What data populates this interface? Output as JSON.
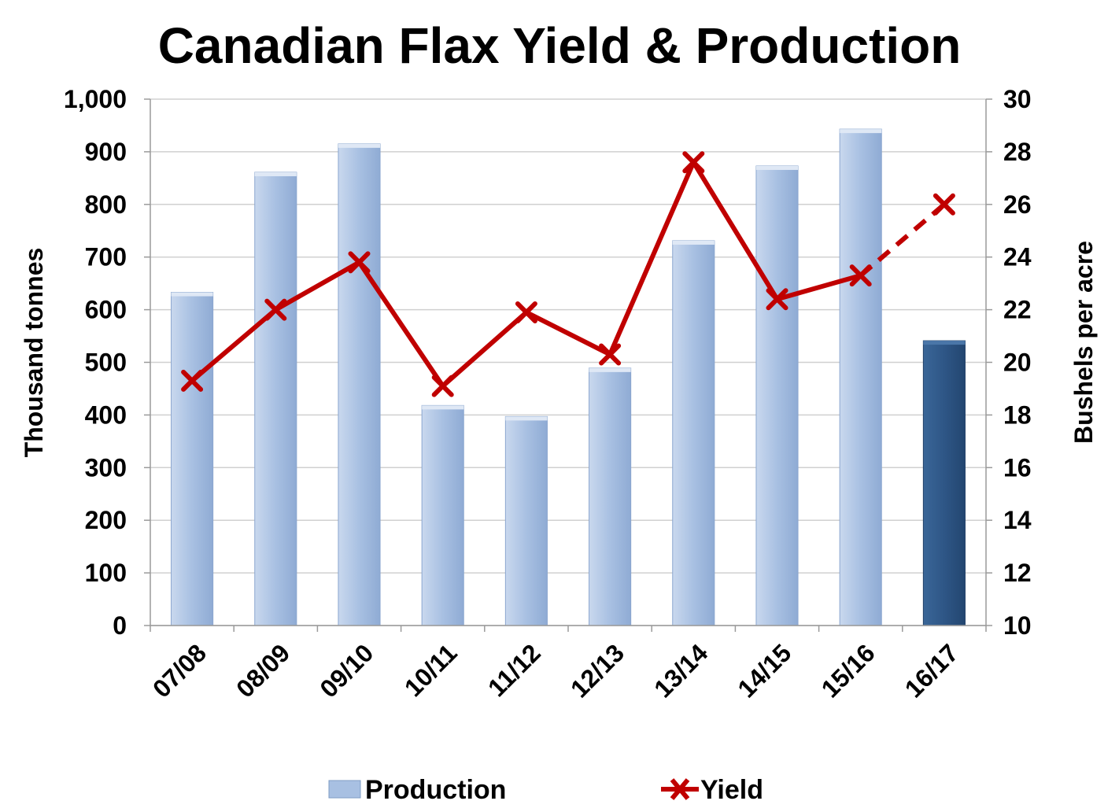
{
  "chart_data": {
    "type": "bar",
    "title": "Canadian Flax Yield & Production",
    "categories": [
      "07/08",
      "08/09",
      "09/10",
      "10/11",
      "11/12",
      "12/13",
      "13/14",
      "14/15",
      "15/16",
      "16/17"
    ],
    "ylabel": "Thousand tonnes",
    "y2label": "Bushels per acre",
    "ylim": [
      0,
      1000
    ],
    "y2lim": [
      10,
      30
    ],
    "yticks": [
      "0",
      "100",
      "200",
      "300",
      "400",
      "500",
      "600",
      "700",
      "800",
      "900",
      "1,000"
    ],
    "y2ticks": [
      "10",
      "12",
      "14",
      "16",
      "18",
      "20",
      "22",
      "24",
      "26",
      "28",
      "30"
    ],
    "grid": true,
    "legend_position": "bottom",
    "series": [
      {
        "name": "Production",
        "type": "bar",
        "axis": "left",
        "values": [
          633,
          861,
          915,
          418,
          397,
          489,
          731,
          873,
          943,
          541
        ],
        "color": "#a8c0e2",
        "highlight_color": "#2e5686",
        "highlight_index": 9
      },
      {
        "name": "Yield",
        "type": "line",
        "axis": "right",
        "marker": "x",
        "values": [
          19.3,
          22.0,
          23.8,
          19.1,
          21.9,
          20.3,
          27.6,
          22.4,
          23.3,
          26.0
        ],
        "color": "#c00000",
        "dashed_from_index": 8
      }
    ]
  }
}
